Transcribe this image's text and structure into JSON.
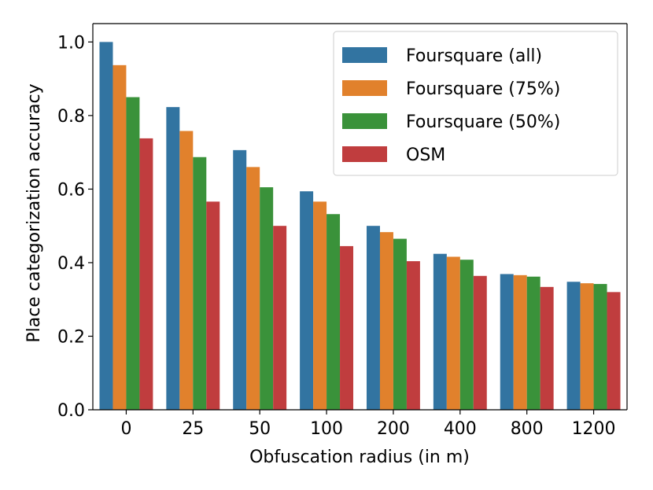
{
  "chart_data": {
    "type": "bar",
    "xlabel": "Obfuscation radius (in m)",
    "ylabel": "Place categorization accuracy",
    "categories": [
      "0",
      "25",
      "50",
      "100",
      "200",
      "400",
      "800",
      "1200"
    ],
    "ylim": [
      0,
      1.05
    ],
    "yticks": [
      "0.0",
      "0.2",
      "0.4",
      "0.6",
      "0.8",
      "1.0"
    ],
    "grid": false,
    "legend_position": "top-right",
    "series": [
      {
        "name": "Foursquare (all)",
        "color": "#3274a1",
        "values": [
          1.0,
          0.823,
          0.706,
          0.594,
          0.5,
          0.424,
          0.369,
          0.348
        ]
      },
      {
        "name": "Foursquare (75%)",
        "color": "#e1812c",
        "values": [
          0.937,
          0.758,
          0.66,
          0.566,
          0.483,
          0.416,
          0.366,
          0.344
        ]
      },
      {
        "name": "Foursquare (50%)",
        "color": "#3a923a",
        "values": [
          0.85,
          0.687,
          0.605,
          0.532,
          0.465,
          0.408,
          0.362,
          0.342
        ]
      },
      {
        "name": "OSM",
        "color": "#c03d3e",
        "values": [
          0.738,
          0.566,
          0.5,
          0.445,
          0.404,
          0.364,
          0.334,
          0.32
        ]
      }
    ]
  }
}
